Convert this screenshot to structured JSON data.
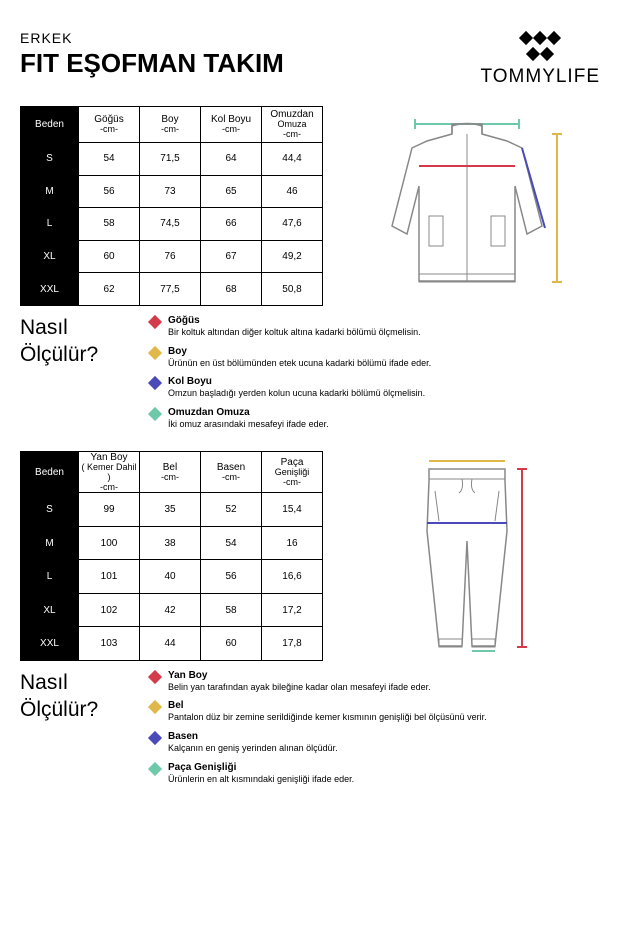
{
  "header": {
    "category": "ERKEK",
    "product": "FIT EŞOFMAN TAKIM",
    "brand": "TOMMYLIFE"
  },
  "colors": {
    "gogus": "#d43b4a",
    "boy": "#e0b84a",
    "kolboyu": "#4a4ab8",
    "omuz": "#6ec9a8",
    "yanboy": "#d43b4a",
    "bel": "#e0b84a",
    "basen": "#4a4ab8",
    "paca": "#6ec9a8"
  },
  "table1": {
    "headers": [
      "Beden",
      "Göğüs\n-cm-",
      "Boy\n-cm-",
      "Kol Boyu\n-cm-",
      "Omuzdan\nOmuza\n-cm-"
    ],
    "rows": [
      [
        "S",
        "54",
        "71,5",
        "64",
        "44,4"
      ],
      [
        "M",
        "56",
        "73",
        "65",
        "46"
      ],
      [
        "L",
        "58",
        "74,5",
        "66",
        "47,6"
      ],
      [
        "XL",
        "60",
        "76",
        "67",
        "49,2"
      ],
      [
        "XXL",
        "62",
        "77,5",
        "68",
        "50,8"
      ]
    ]
  },
  "table2": {
    "headers": [
      "Beden",
      "Yan Boy\n( Kemer Dahil )\n-cm-",
      "Bel\n-cm-",
      "Basen\n-cm-",
      "Paça\nGenişliği\n-cm-"
    ],
    "rows": [
      [
        "S",
        "99",
        "35",
        "52",
        "15,4"
      ],
      [
        "M",
        "100",
        "38",
        "54",
        "16"
      ],
      [
        "L",
        "101",
        "40",
        "56",
        "16,6"
      ],
      [
        "XL",
        "102",
        "42",
        "58",
        "17,2"
      ],
      [
        "XXL",
        "103",
        "44",
        "60",
        "17,8"
      ]
    ]
  },
  "howto": {
    "question": "Nasıl\nÖlçülür?",
    "legend1": [
      {
        "title": "Göğüs",
        "desc": "Bir koltuk altından diğer koltuk altına kadarki bölümü ölçmelisin.",
        "colorKey": "gogus"
      },
      {
        "title": "Boy",
        "desc": "Ürünün en üst bölümünden etek ucuna kadarki bölümü ifade eder.",
        "colorKey": "boy"
      },
      {
        "title": "Kol Boyu",
        "desc": "Omzun başladığı yerden kolun ucuna kadarki bölümü ölçmelisin.",
        "colorKey": "kolboyu"
      },
      {
        "title": "Omuzdan Omuza",
        "desc": "İki omuz arasındaki mesafeyi ifade eder.",
        "colorKey": "omuz"
      }
    ],
    "legend2": [
      {
        "title": "Yan Boy",
        "desc": "Belin yan tarafından ayak bileğine kadar olan mesafeyi ifade eder.",
        "colorKey": "yanboy"
      },
      {
        "title": "Bel",
        "desc": "Pantalon düz bir zemine serildiğinde kemer kısmının genişliği bel ölçüsünü verir.",
        "colorKey": "bel"
      },
      {
        "title": "Basen",
        "desc": "Kalçanın en geniş yerinden alınan ölçüdür.",
        "colorKey": "basen"
      },
      {
        "title": "Paça Genişliği",
        "desc": "Ürünlerin en alt kısmındaki genişliği ifade eder.",
        "colorKey": "paca"
      }
    ]
  }
}
